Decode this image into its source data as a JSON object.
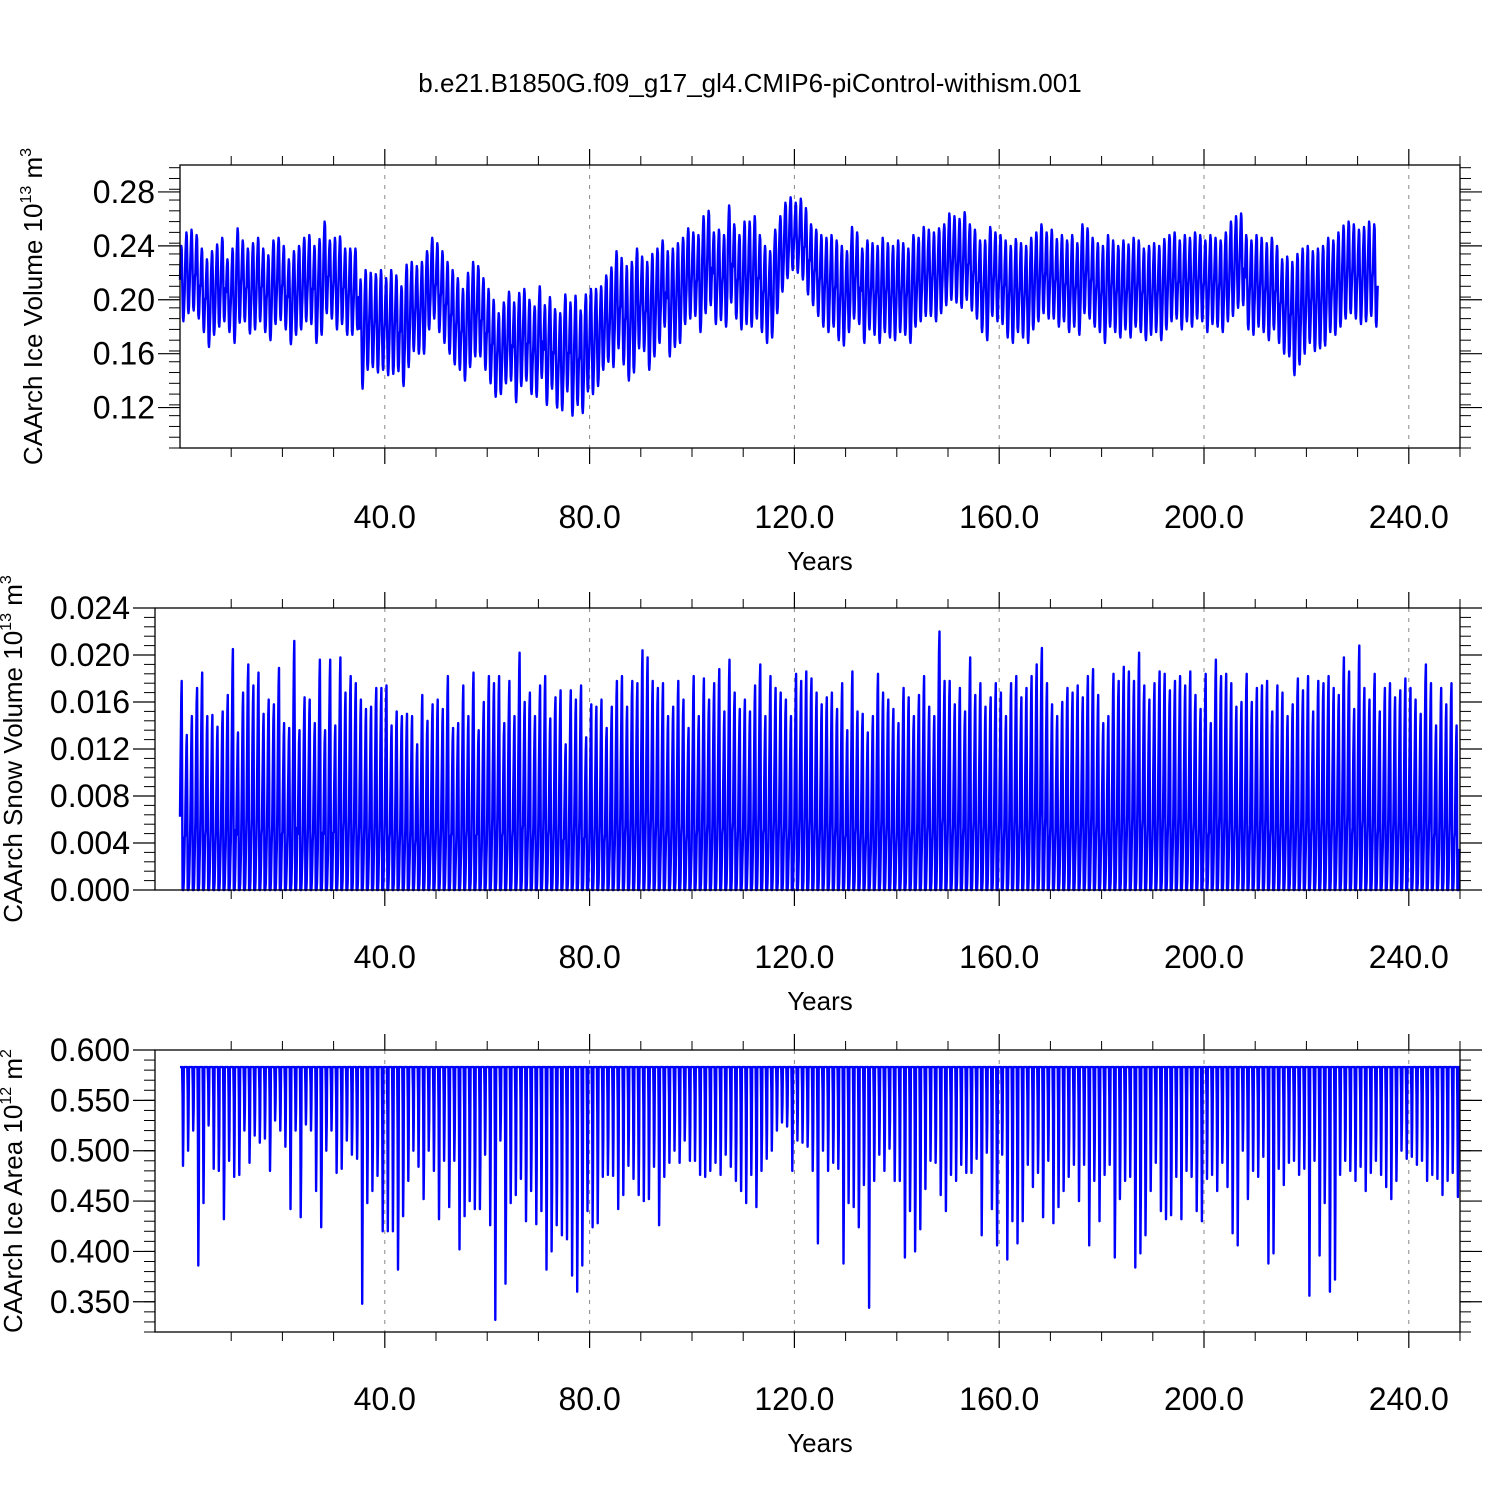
{
  "title": "b.e21.B1850G.f09_g17_gl4.CMIP6-piControl-withism.001",
  "colors": {
    "series": "#0000ff",
    "axis": "#000000",
    "grid": "#888888"
  },
  "chart_data": [
    {
      "type": "line",
      "xlabel": "Years",
      "ylabel": {
        "main": "CAArch Ice Volume 10",
        "sup": "13",
        "unit": " m",
        "unit_sup": "3"
      },
      "xlim": [
        0,
        250
      ],
      "ylim": [
        0.09,
        0.3
      ],
      "xticks": [
        40,
        80,
        120,
        160,
        200,
        240
      ],
      "xtick_labels": [
        "40.0",
        "80.0",
        "120.0",
        "160.0",
        "200.0",
        "240.0"
      ],
      "yticks": [
        0.12,
        0.16,
        0.2,
        0.24,
        0.28
      ],
      "ytick_labels": [
        "0.12",
        "0.16",
        "0.20",
        "0.24",
        "0.28"
      ],
      "grid": "dashed-vertical",
      "monthly": true,
      "years": [
        1,
        250
      ],
      "annual_max": [
        0.24,
        0.25,
        0.252,
        0.248,
        0.238,
        0.23,
        0.236,
        0.241,
        0.246,
        0.23,
        0.238,
        0.253,
        0.244,
        0.238,
        0.242,
        0.246,
        0.238,
        0.233,
        0.244,
        0.246,
        0.24,
        0.23,
        0.236,
        0.24,
        0.246,
        0.248,
        0.24,
        0.245,
        0.258,
        0.244,
        0.246,
        0.247,
        0.238,
        0.238,
        0.238,
        0.215,
        0.222,
        0.22,
        0.219,
        0.222,
        0.216,
        0.222,
        0.218,
        0.21,
        0.226,
        0.228,
        0.225,
        0.228,
        0.236,
        0.246,
        0.242,
        0.236,
        0.228,
        0.222,
        0.216,
        0.208,
        0.22,
        0.228,
        0.225,
        0.216,
        0.208,
        0.2,
        0.19,
        0.198,
        0.206,
        0.198,
        0.205,
        0.208,
        0.2,
        0.195,
        0.21,
        0.196,
        0.202,
        0.193,
        0.19,
        0.204,
        0.198,
        0.203,
        0.192,
        0.204,
        0.208,
        0.208,
        0.21,
        0.218,
        0.224,
        0.236,
        0.231,
        0.225,
        0.228,
        0.238,
        0.232,
        0.228,
        0.234,
        0.238,
        0.244,
        0.236,
        0.238,
        0.242,
        0.246,
        0.253,
        0.25,
        0.248,
        0.262,
        0.266,
        0.25,
        0.252,
        0.248,
        0.27,
        0.256,
        0.248,
        0.258,
        0.258,
        0.262,
        0.248,
        0.24,
        0.236,
        0.252,
        0.262,
        0.272,
        0.276,
        0.272,
        0.275,
        0.268,
        0.256,
        0.252,
        0.248,
        0.246,
        0.248,
        0.244,
        0.24,
        0.236,
        0.254,
        0.25,
        0.238,
        0.244,
        0.242,
        0.24,
        0.246,
        0.242,
        0.24,
        0.244,
        0.242,
        0.238,
        0.248,
        0.246,
        0.254,
        0.252,
        0.25,
        0.253,
        0.256,
        0.264,
        0.262,
        0.26,
        0.265,
        0.256,
        0.252,
        0.244,
        0.244,
        0.254,
        0.25,
        0.248,
        0.244,
        0.24,
        0.245,
        0.242,
        0.24,
        0.246,
        0.25,
        0.256,
        0.25,
        0.252,
        0.245,
        0.248,
        0.244,
        0.248,
        0.242,
        0.256,
        0.253,
        0.246,
        0.242,
        0.24,
        0.248,
        0.244,
        0.24,
        0.244,
        0.241,
        0.246,
        0.244,
        0.238,
        0.24,
        0.242,
        0.24,
        0.245,
        0.248,
        0.25,
        0.244,
        0.248,
        0.246,
        0.25,
        0.248,
        0.244,
        0.248,
        0.246,
        0.244,
        0.25,
        0.258,
        0.262,
        0.264,
        0.248,
        0.244,
        0.248,
        0.246,
        0.242,
        0.246,
        0.24,
        0.23,
        0.232,
        0.228,
        0.234,
        0.238,
        0.24,
        0.236,
        0.238,
        0.24,
        0.246,
        0.244,
        0.25,
        0.255,
        0.258,
        0.256,
        0.252,
        0.254,
        0.258,
        0.256
      ],
      "annual_min": [
        0.184,
        0.19,
        0.192,
        0.186,
        0.176,
        0.165,
        0.174,
        0.18,
        0.184,
        0.176,
        0.168,
        0.183,
        0.184,
        0.175,
        0.178,
        0.184,
        0.176,
        0.17,
        0.182,
        0.185,
        0.178,
        0.167,
        0.174,
        0.178,
        0.184,
        0.182,
        0.168,
        0.174,
        0.19,
        0.186,
        0.178,
        0.182,
        0.174,
        0.174,
        0.178,
        0.134,
        0.148,
        0.15,
        0.146,
        0.148,
        0.144,
        0.145,
        0.147,
        0.136,
        0.15,
        0.162,
        0.16,
        0.16,
        0.178,
        0.186,
        0.176,
        0.168,
        0.16,
        0.152,
        0.148,
        0.14,
        0.15,
        0.158,
        0.158,
        0.148,
        0.138,
        0.128,
        0.13,
        0.138,
        0.14,
        0.124,
        0.136,
        0.14,
        0.13,
        0.128,
        0.142,
        0.122,
        0.134,
        0.12,
        0.118,
        0.132,
        0.114,
        0.122,
        0.116,
        0.132,
        0.13,
        0.136,
        0.148,
        0.154,
        0.15,
        0.164,
        0.152,
        0.14,
        0.146,
        0.164,
        0.162,
        0.148,
        0.158,
        0.168,
        0.18,
        0.158,
        0.165,
        0.168,
        0.182,
        0.186,
        0.188,
        0.176,
        0.19,
        0.196,
        0.182,
        0.185,
        0.18,
        0.198,
        0.186,
        0.178,
        0.182,
        0.18,
        0.186,
        0.176,
        0.168,
        0.172,
        0.19,
        0.206,
        0.216,
        0.222,
        0.22,
        0.215,
        0.204,
        0.196,
        0.188,
        0.18,
        0.176,
        0.18,
        0.17,
        0.166,
        0.176,
        0.186,
        0.182,
        0.168,
        0.178,
        0.174,
        0.168,
        0.176,
        0.172,
        0.17,
        0.176,
        0.174,
        0.168,
        0.18,
        0.184,
        0.188,
        0.188,
        0.184,
        0.19,
        0.196,
        0.2,
        0.198,
        0.194,
        0.2,
        0.192,
        0.186,
        0.176,
        0.17,
        0.188,
        0.184,
        0.182,
        0.172,
        0.168,
        0.176,
        0.172,
        0.168,
        0.178,
        0.184,
        0.19,
        0.186,
        0.186,
        0.18,
        0.184,
        0.176,
        0.18,
        0.174,
        0.19,
        0.186,
        0.18,
        0.176,
        0.168,
        0.18,
        0.176,
        0.172,
        0.178,
        0.172,
        0.18,
        0.176,
        0.17,
        0.174,
        0.176,
        0.17,
        0.178,
        0.184,
        0.186,
        0.178,
        0.184,
        0.18,
        0.186,
        0.184,
        0.176,
        0.182,
        0.18,
        0.176,
        0.184,
        0.188,
        0.194,
        0.196,
        0.178,
        0.174,
        0.18,
        0.176,
        0.17,
        0.178,
        0.168,
        0.16,
        0.158,
        0.144,
        0.152,
        0.16,
        0.168,
        0.162,
        0.164,
        0.166,
        0.176,
        0.174,
        0.18,
        0.186,
        0.19,
        0.186,
        0.182,
        0.184,
        0.188,
        0.18
      ]
    },
    {
      "type": "line",
      "xlabel": "Years",
      "ylabel": {
        "main": "CAArch Snow Volume 10",
        "sup": "13",
        "unit": " m",
        "unit_sup": "3"
      },
      "xlim": [
        0,
        250
      ],
      "ylim": [
        0.0,
        0.024
      ],
      "xticks": [
        40,
        80,
        120,
        160,
        200,
        240
      ],
      "xtick_labels": [
        "40.0",
        "80.0",
        "120.0",
        "160.0",
        "200.0",
        "240.0"
      ],
      "yticks": [
        0.0,
        0.004,
        0.008,
        0.012,
        0.016,
        0.02,
        0.024
      ],
      "ytick_labels": [
        "0.000",
        "0.004",
        "0.008",
        "0.012",
        "0.016",
        "0.020",
        "0.024"
      ],
      "grid": "dashed-vertical",
      "monthly": true,
      "years": [
        1,
        250
      ],
      "annual_max": [
        0.0178,
        0.0132,
        0.0148,
        0.0172,
        0.0185,
        0.0148,
        0.0149,
        0.0139,
        0.0152,
        0.0166,
        0.0205,
        0.0134,
        0.0168,
        0.0192,
        0.0174,
        0.0185,
        0.015,
        0.0162,
        0.0158,
        0.0189,
        0.0142,
        0.0138,
        0.0212,
        0.0136,
        0.0164,
        0.0162,
        0.0142,
        0.0196,
        0.0136,
        0.0196,
        0.014,
        0.0198,
        0.0168,
        0.0182,
        0.0176,
        0.0162,
        0.0154,
        0.0156,
        0.0172,
        0.0172,
        0.0174,
        0.014,
        0.0152,
        0.0148,
        0.015,
        0.0148,
        0.0124,
        0.0166,
        0.0144,
        0.0158,
        0.0162,
        0.0154,
        0.0182,
        0.0138,
        0.0142,
        0.0174,
        0.0148,
        0.0185,
        0.0136,
        0.016,
        0.0182,
        0.0176,
        0.0182,
        0.0142,
        0.0178,
        0.0148,
        0.0202,
        0.016,
        0.0168,
        0.0148,
        0.0174,
        0.0182,
        0.0146,
        0.0164,
        0.017,
        0.0124,
        0.017,
        0.0162,
        0.0174,
        0.013,
        0.0158,
        0.0156,
        0.0162,
        0.0138,
        0.0156,
        0.0178,
        0.0182,
        0.0156,
        0.0178,
        0.0176,
        0.0204,
        0.0198,
        0.0178,
        0.0172,
        0.0176,
        0.0148,
        0.0156,
        0.0178,
        0.0162,
        0.0138,
        0.0182,
        0.0148,
        0.018,
        0.0162,
        0.0176,
        0.0188,
        0.0152,
        0.0196,
        0.0168,
        0.0154,
        0.0162,
        0.0152,
        0.0174,
        0.0192,
        0.0148,
        0.0182,
        0.0172,
        0.0168,
        0.0162,
        0.0148,
        0.0184,
        0.0178,
        0.0186,
        0.018,
        0.0168,
        0.0158,
        0.0164,
        0.0168,
        0.0154,
        0.0176,
        0.0136,
        0.0186,
        0.0152,
        0.015,
        0.0134,
        0.0148,
        0.0184,
        0.0168,
        0.0162,
        0.0154,
        0.0142,
        0.0172,
        0.0164,
        0.0148,
        0.0166,
        0.0182,
        0.0156,
        0.0148,
        0.022,
        0.0178,
        0.0178,
        0.0158,
        0.0172,
        0.0152,
        0.0198,
        0.0166,
        0.0176,
        0.0156,
        0.0164,
        0.0176,
        0.0168,
        0.0148,
        0.0176,
        0.0182,
        0.0164,
        0.0172,
        0.0182,
        0.0192,
        0.0206,
        0.0176,
        0.0158,
        0.0148,
        0.016,
        0.0172,
        0.0168,
        0.0174,
        0.0164,
        0.0182,
        0.0188,
        0.0166,
        0.0142,
        0.0148,
        0.0184,
        0.0178,
        0.019,
        0.0186,
        0.0178,
        0.0202,
        0.0174,
        0.0162,
        0.0176,
        0.0186,
        0.0184,
        0.017,
        0.0178,
        0.0182,
        0.0174,
        0.0186,
        0.0166,
        0.0154,
        0.0184,
        0.0142,
        0.0196,
        0.0182,
        0.0184,
        0.0176,
        0.0156,
        0.016,
        0.0184,
        0.016,
        0.0172,
        0.0174,
        0.0178,
        0.0152,
        0.0174,
        0.0168,
        0.0148,
        0.0158,
        0.018,
        0.017,
        0.0182,
        0.0152,
        0.0178,
        0.0176,
        0.0182,
        0.0172,
        0.0166,
        0.0198,
        0.0186,
        0.0154,
        0.0208,
        0.0172,
        0.0162,
        0.0184,
        0.0152,
        0.0172,
        0.0176,
        0.0164,
        0.017,
        0.018,
        0.0172,
        0.0162,
        0.015,
        0.0192,
        0.0176,
        0.014,
        0.0172,
        0.0158,
        0.0176,
        0.014,
        0.0168,
        0.0148,
        0.015,
        0.013
      ]
    },
    {
      "type": "line",
      "xlabel": "Years",
      "ylabel": {
        "main": "CAArch Ice Area 10",
        "sup": "12",
        "unit": " m",
        "unit_sup": "2"
      },
      "xlim": [
        0,
        250
      ],
      "ylim": [
        0.32,
        0.6
      ],
      "xticks": [
        40,
        80,
        120,
        160,
        200,
        240
      ],
      "xtick_labels": [
        "40.0",
        "80.0",
        "120.0",
        "160.0",
        "200.0",
        "240.0"
      ],
      "yticks": [
        0.35,
        0.4,
        0.45,
        0.5,
        0.55,
        0.6
      ],
      "ytick_labels": [
        "0.350",
        "0.400",
        "0.450",
        "0.500",
        "0.550",
        "0.600"
      ],
      "grid": "dashed-vertical",
      "monthly": true,
      "years": [
        1,
        250
      ],
      "annual_max_value": 0.583,
      "annual_min": [
        0.485,
        0.5,
        0.52,
        0.386,
        0.448,
        0.525,
        0.482,
        0.48,
        0.432,
        0.49,
        0.474,
        0.476,
        0.52,
        0.488,
        0.515,
        0.508,
        0.512,
        0.48,
        0.53,
        0.52,
        0.504,
        0.442,
        0.52,
        0.434,
        0.526,
        0.52,
        0.46,
        0.424,
        0.5,
        0.52,
        0.478,
        0.482,
        0.51,
        0.496,
        0.492,
        0.348,
        0.448,
        0.46,
        0.475,
        0.42,
        0.42,
        0.42,
        0.382,
        0.435,
        0.47,
        0.5,
        0.484,
        0.452,
        0.5,
        0.48,
        0.432,
        0.49,
        0.444,
        0.49,
        0.402,
        0.435,
        0.45,
        0.442,
        0.442,
        0.496,
        0.426,
        0.332,
        0.51,
        0.368,
        0.448,
        0.456,
        0.472,
        0.43,
        0.46,
        0.427,
        0.44,
        0.382,
        0.4,
        0.426,
        0.416,
        0.412,
        0.376,
        0.36,
        0.386,
        0.44,
        0.424,
        0.428,
        0.474,
        0.476,
        0.475,
        0.442,
        0.456,
        0.485,
        0.472,
        0.456,
        0.45,
        0.452,
        0.484,
        0.426,
        0.474,
        0.488,
        0.5,
        0.488,
        0.51,
        0.49,
        0.49,
        0.476,
        0.474,
        0.48,
        0.488,
        0.476,
        0.496,
        0.484,
        0.47,
        0.46,
        0.448,
        0.476,
        0.444,
        0.48,
        0.492,
        0.5,
        0.52,
        0.528,
        0.524,
        0.48,
        0.51,
        0.508,
        0.504,
        0.48,
        0.408,
        0.5,
        0.48,
        0.488,
        0.482,
        0.388,
        0.448,
        0.444,
        0.424,
        0.466,
        0.344,
        0.47,
        0.496,
        0.48,
        0.502,
        0.47,
        0.47,
        0.394,
        0.44,
        0.4,
        0.422,
        0.462,
        0.49,
        0.488,
        0.456,
        0.44,
        0.476,
        0.47,
        0.486,
        0.478,
        0.478,
        0.492,
        0.416,
        0.498,
        0.442,
        0.406,
        0.496,
        0.392,
        0.43,
        0.408,
        0.43,
        0.486,
        0.464,
        0.478,
        0.434,
        0.49,
        0.428,
        0.444,
        0.46,
        0.474,
        0.486,
        0.45,
        0.486,
        0.406,
        0.47,
        0.43,
        0.476,
        0.486,
        0.394,
        0.452,
        0.47,
        0.474,
        0.384,
        0.398,
        0.416,
        0.46,
        0.488,
        0.44,
        0.432,
        0.436,
        0.474,
        0.432,
        0.48,
        0.474,
        0.44,
        0.43,
        0.472,
        0.476,
        0.46,
        0.488,
        0.464,
        0.418,
        0.406,
        0.5,
        0.452,
        0.48,
        0.474,
        0.494,
        0.388,
        0.398,
        0.482,
        0.466,
        0.488,
        0.49,
        0.476,
        0.482,
        0.356,
        0.49,
        0.396,
        0.448,
        0.36,
        0.372,
        0.476,
        0.49,
        0.48,
        0.47,
        0.484,
        0.46,
        0.478,
        0.49,
        0.476,
        0.464,
        0.452,
        0.47,
        0.5,
        0.492,
        0.494,
        0.486,
        0.49,
        0.47,
        0.476,
        0.472,
        0.456,
        0.47,
        0.478,
        0.454
      ]
    }
  ]
}
